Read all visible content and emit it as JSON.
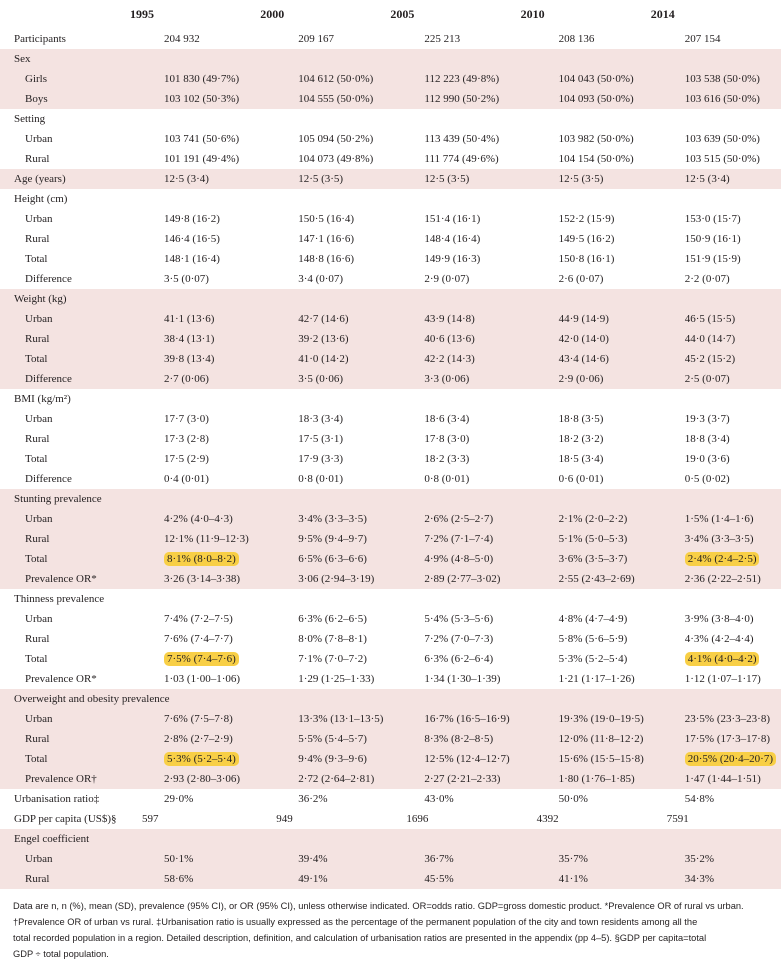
{
  "columns": [
    "1995",
    "2000",
    "2005",
    "2010",
    "2014"
  ],
  "rows": [
    {
      "kind": "data",
      "band": "w",
      "label": "Participants",
      "values": [
        "204 932",
        "209 167",
        "225 213",
        "208 136",
        "207 154"
      ]
    },
    {
      "kind": "head",
      "band": "s",
      "label": "Sex"
    },
    {
      "kind": "sub",
      "band": "s",
      "label": "Girls",
      "values": [
        "101 830 (49·7%)",
        "104 612 (50·0%)",
        "112 223 (49·8%)",
        "104 043 (50·0%)",
        "103 538 (50·0%)"
      ]
    },
    {
      "kind": "sub",
      "band": "s",
      "label": "Boys",
      "values": [
        "103 102 (50·3%)",
        "104 555 (50·0%)",
        "112 990 (50·2%)",
        "104 093 (50·0%)",
        "103 616 (50·0%)"
      ]
    },
    {
      "kind": "head",
      "band": "w",
      "label": "Setting"
    },
    {
      "kind": "sub",
      "band": "w",
      "label": "Urban",
      "values": [
        "103 741 (50·6%)",
        "105 094 (50·2%)",
        "113 439 (50·4%)",
        "103 982 (50·0%)",
        "103 639 (50·0%)"
      ]
    },
    {
      "kind": "sub",
      "band": "w",
      "label": "Rural",
      "values": [
        "101 191 (49·4%)",
        "104 073 (49·8%)",
        "111 774 (49·6%)",
        "104 154 (50·0%)",
        "103 515 (50·0%)"
      ]
    },
    {
      "kind": "data",
      "band": "s",
      "label": "Age (years)",
      "values": [
        "12·5 (3·4)",
        "12·5 (3·5)",
        "12·5 (3·5)",
        "12·5 (3·5)",
        "12·5 (3·4)"
      ]
    },
    {
      "kind": "head",
      "band": "w",
      "label": "Height (cm)"
    },
    {
      "kind": "sub",
      "band": "w",
      "label": "Urban",
      "values": [
        "149·8 (16·2)",
        "150·5 (16·4)",
        "151·4 (16·1)",
        "152·2 (15·9)",
        "153·0 (15·7)"
      ]
    },
    {
      "kind": "sub",
      "band": "w",
      "label": "Rural",
      "values": [
        "146·4 (16·5)",
        "147·1 (16·6)",
        "148·4 (16·4)",
        "149·5 (16·2)",
        "150·9 (16·1)"
      ]
    },
    {
      "kind": "sub",
      "band": "w",
      "label": "Total",
      "values": [
        "148·1 (16·4)",
        "148·8 (16·6)",
        "149·9 (16·3)",
        "150·8 (16·1)",
        "151·9 (15·9)"
      ]
    },
    {
      "kind": "sub",
      "band": "w",
      "label": "Difference",
      "values": [
        "3·5 (0·07)",
        "3·4 (0·07)",
        "2·9 (0·07)",
        "2·6 (0·07)",
        "2·2 (0·07)"
      ]
    },
    {
      "kind": "head",
      "band": "s",
      "label": "Weight (kg)"
    },
    {
      "kind": "sub",
      "band": "s",
      "label": "Urban",
      "values": [
        "41·1 (13·6)",
        "42·7 (14·6)",
        "43·9 (14·8)",
        "44·9 (14·9)",
        "46·5 (15·5)"
      ]
    },
    {
      "kind": "sub",
      "band": "s",
      "label": "Rural",
      "values": [
        "38·4 (13·1)",
        "39·2 (13·6)",
        "40·6 (13·6)",
        "42·0 (14·0)",
        "44·0 (14·7)"
      ]
    },
    {
      "kind": "sub",
      "band": "s",
      "label": "Total",
      "values": [
        "39·8 (13·4)",
        "41·0 (14·2)",
        "42·2 (14·3)",
        "43·4 (14·6)",
        "45·2 (15·2)"
      ]
    },
    {
      "kind": "sub",
      "band": "s",
      "label": "Difference",
      "values": [
        "2·7 (0·06)",
        "3·5 (0·06)",
        "3·3 (0·06)",
        "2·9 (0·06)",
        "2·5 (0·07)"
      ]
    },
    {
      "kind": "head",
      "band": "w",
      "label": "BMI (kg/m²)"
    },
    {
      "kind": "sub",
      "band": "w",
      "label": "Urban",
      "values": [
        "17·7 (3·0)",
        "18·3 (3·4)",
        "18·6 (3·4)",
        "18·8 (3·5)",
        "19·3 (3·7)"
      ]
    },
    {
      "kind": "sub",
      "band": "w",
      "label": "Rural",
      "values": [
        "17·3 (2·8)",
        "17·5 (3·1)",
        "17·8 (3·0)",
        "18·2 (3·2)",
        "18·8 (3·4)"
      ]
    },
    {
      "kind": "sub",
      "band": "w",
      "label": "Total",
      "values": [
        "17·5 (2·9)",
        "17·9 (3·3)",
        "18·2 (3·3)",
        "18·5 (3·4)",
        "19·0 (3·6)"
      ]
    },
    {
      "kind": "sub",
      "band": "w",
      "label": "Difference",
      "values": [
        "0·4 (0·01)",
        "0·8 (0·01)",
        "0·8 (0·01)",
        "0·6 (0·01)",
        "0·5 (0·02)"
      ]
    },
    {
      "kind": "head",
      "band": "s",
      "label": "Stunting prevalence"
    },
    {
      "kind": "sub",
      "band": "s",
      "label": "Urban",
      "values": [
        "4·2% (4·0–4·3)",
        "3·4% (3·3–3·5)",
        "2·6% (2·5–2·7)",
        "2·1% (2·0–2·2)",
        "1·5% (1·4–1·6)"
      ]
    },
    {
      "kind": "sub",
      "band": "s",
      "label": "Rural",
      "values": [
        "12·1% (11·9–12·3)",
        "9·5% (9·4–9·7)",
        "7·2% (7·1–7·4)",
        "5·1% (5·0–5·3)",
        "3·4% (3·3–3·5)"
      ]
    },
    {
      "kind": "sub",
      "band": "s",
      "label": "Total",
      "values": [
        "8·1% (8·0–8·2)",
        "6·5% (6·3–6·6)",
        "4·9% (4·8–5·0)",
        "3·6% (3·5–3·7)",
        "2·4% (2·4–2·5)"
      ],
      "highlight": [
        0,
        4
      ]
    },
    {
      "kind": "sub",
      "band": "s",
      "label": "Prevalence OR*",
      "values": [
        "3·26 (3·14–3·38)",
        "3·06 (2·94–3·19)",
        "2·89 (2·77–3·02)",
        "2·55 (2·43–2·69)",
        "2·36 (2·22–2·51)"
      ]
    },
    {
      "kind": "head",
      "band": "w",
      "label": "Thinness prevalence"
    },
    {
      "kind": "sub",
      "band": "w",
      "label": "Urban",
      "values": [
        "7·4% (7·2–7·5)",
        "6·3% (6·2–6·5)",
        "5·4% (5·3–5·6)",
        "4·8% (4·7–4·9)",
        "3·9% (3·8–4·0)"
      ]
    },
    {
      "kind": "sub",
      "band": "w",
      "label": "Rural",
      "values": [
        "7·6% (7·4–7·7)",
        "8·0% (7·8–8·1)",
        "7·2% (7·0–7·3)",
        "5·8% (5·6–5·9)",
        "4·3% (4·2–4·4)"
      ]
    },
    {
      "kind": "sub",
      "band": "w",
      "label": "Total",
      "values": [
        "7·5% (7·4–7·6)",
        "7·1% (7·0–7·2)",
        "6·3% (6·2–6·4)",
        "5·3% (5·2–5·4)",
        "4·1% (4·0–4·2)"
      ],
      "highlight": [
        0,
        4
      ]
    },
    {
      "kind": "sub",
      "band": "w",
      "label": "Prevalence OR*",
      "values": [
        "1·03 (1·00–1·06)",
        "1·29 (1·25–1·33)",
        "1·34 (1·30–1·39)",
        "1·21 (1·17–1·26)",
        "1·12 (1·07–1·17)"
      ]
    },
    {
      "kind": "head",
      "band": "s",
      "label": "Overweight and obesity prevalence"
    },
    {
      "kind": "sub",
      "band": "s",
      "label": "Urban",
      "values": [
        "7·6% (7·5–7·8)",
        "13·3% (13·1–13·5)",
        "16·7% (16·5–16·9)",
        "19·3% (19·0–19·5)",
        "23·5% (23·3–23·8)"
      ]
    },
    {
      "kind": "sub",
      "band": "s",
      "label": "Rural",
      "values": [
        "2·8% (2·7–2·9)",
        "5·5% (5·4–5·7)",
        "8·3% (8·2–8·5)",
        "12·0% (11·8–12·2)",
        "17·5% (17·3–17·8)"
      ]
    },
    {
      "kind": "sub",
      "band": "s",
      "label": "Total",
      "values": [
        "5·3% (5·2–5·4)",
        "9·4% (9·3–9·6)",
        "12·5% (12·4–12·7)",
        "15·6% (15·5–15·8)",
        "20·5% (20·4–20·7)"
      ],
      "highlight": [
        0,
        4
      ]
    },
    {
      "kind": "sub",
      "band": "s",
      "label": "Prevalence OR†",
      "values": [
        "2·93 (2·80–3·06)",
        "2·72 (2·64–2·81)",
        "2·27 (2·21–2·33)",
        "1·80 (1·76–1·85)",
        "1·47 (1·44–1·51)"
      ]
    },
    {
      "kind": "data",
      "band": "w",
      "label": "Urbanisation ratio‡",
      "values": [
        "29·0%",
        "36·2%",
        "43·0%",
        "50·0%",
        "54·8%"
      ]
    },
    {
      "kind": "data",
      "band": "w",
      "label": "GDP per capita (US$)§",
      "values": [
        "597",
        "949",
        "1696",
        "4392",
        "7591"
      ],
      "shift": true
    },
    {
      "kind": "head",
      "band": "s",
      "label": "Engel coefficient"
    },
    {
      "kind": "sub",
      "band": "s",
      "label": "Urban",
      "values": [
        "50·1%",
        "39·4%",
        "36·7%",
        "35·7%",
        "35·2%"
      ]
    },
    {
      "kind": "sub",
      "band": "s",
      "label": "Rural",
      "values": [
        "58·6%",
        "49·1%",
        "45·5%",
        "41·1%",
        "34·3%"
      ]
    }
  ],
  "footnote": [
    "Data are n, n (%), mean (SD), prevalence (95% CI), or OR (95% CI), unless otherwise indicated. OR=odds ratio. GDP=gross domestic product. *Prevalence OR of rural vs urban.",
    "†Prevalence OR of urban vs rural. ‡Urbanisation ratio is usually expressed as the percentage of the permanent population of the city and town residents among all the",
    "total recorded population in a region. Detailed description, definition, and calculation of urbanisation ratios are presented in the appendix (pp 4–5). §GDP per capita=total",
    "GDP ÷ total population."
  ]
}
